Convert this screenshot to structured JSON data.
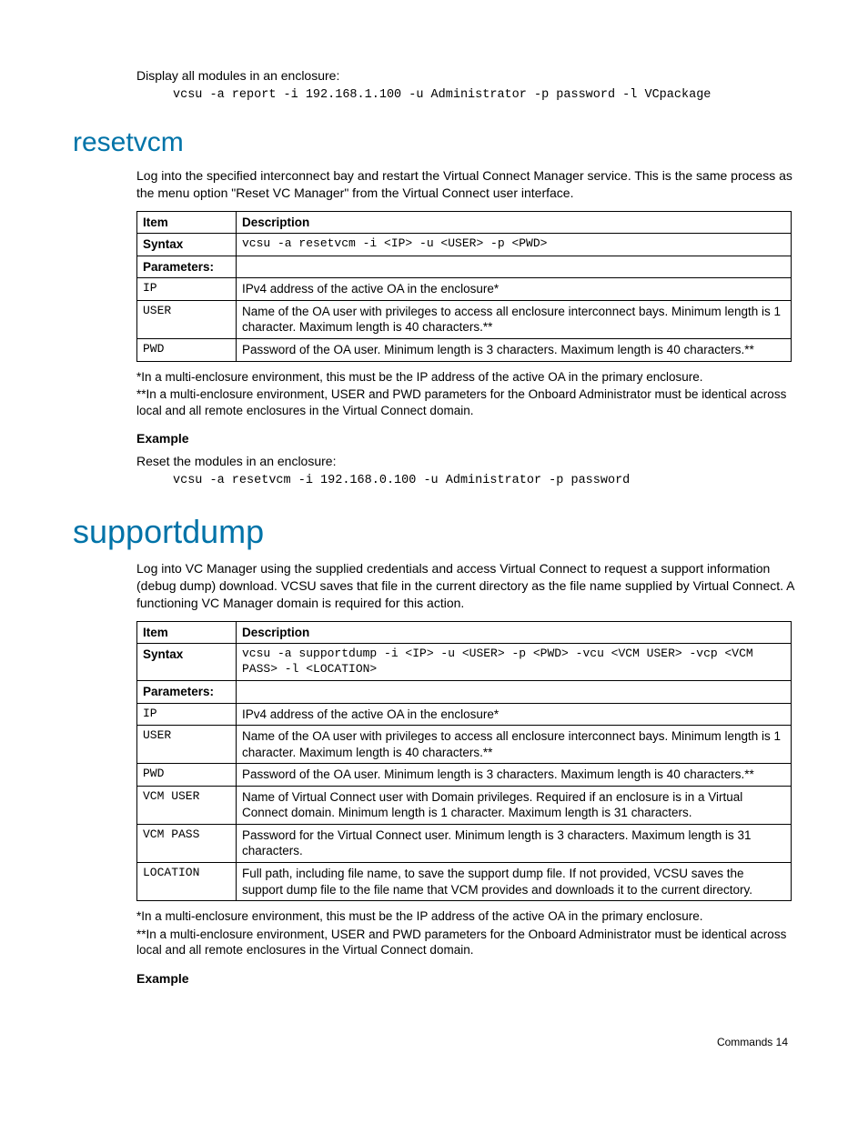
{
  "intro": {
    "text": "Display all modules in an enclosure:",
    "code": "vcsu -a report -i 192.168.1.100 -u Administrator -p password -l VCpackage"
  },
  "resetvcm": {
    "heading": "resetvcm",
    "desc": "Log into the specified interconnect bay and restart the Virtual Connect Manager service. This is the same process as the menu option \"Reset VC Manager\" from the Virtual Connect user interface.",
    "table": {
      "header_item": "Item",
      "header_desc": "Description",
      "syntax_label": "Syntax",
      "syntax_code": "vcsu -a resetvcm -i <IP> -u <USER> -p <PWD>",
      "params_label": "Parameters:",
      "rows": [
        {
          "item": "IP",
          "desc": "IPv4 address of the active OA in the enclosure*"
        },
        {
          "item": "USER",
          "desc": "Name of the OA user with privileges to access all enclosure interconnect bays. Minimum length is 1 character. Maximum length is 40 characters.**"
        },
        {
          "item": "PWD",
          "desc": "Password of the OA user. Minimum length is 3 characters. Maximum length is 40 characters.**"
        }
      ]
    },
    "note1": "*In a multi-enclosure environment, this must be the IP address of the active OA in the primary enclosure.",
    "note2": "**In a multi-enclosure environment, USER and PWD parameters for the Onboard Administrator must be identical across local and all remote enclosures in the Virtual Connect domain.",
    "example_label": "Example",
    "example_text": "Reset the modules in an enclosure:",
    "example_code": "vcsu -a resetvcm -i 192.168.0.100 -u Administrator -p password"
  },
  "supportdump": {
    "heading": "supportdump",
    "desc": "Log into VC Manager using the supplied credentials and access Virtual Connect to request a support information (debug dump) download. VCSU saves that file in the current directory as the file name supplied by Virtual Connect. A functioning VC Manager domain is required for this action.",
    "table": {
      "header_item": "Item",
      "header_desc": "Description",
      "syntax_label": "Syntax",
      "syntax_code": "vcsu -a supportdump -i <IP> -u <USER> -p <PWD> -vcu <VCM USER> -vcp <VCM PASS> -l <LOCATION>",
      "params_label": "Parameters:",
      "rows": [
        {
          "item": "IP",
          "desc": "IPv4 address of the active OA in the enclosure*"
        },
        {
          "item": "USER",
          "desc": "Name of the OA user with privileges to access all enclosure interconnect bays. Minimum length is 1 character. Maximum length is 40 characters.**"
        },
        {
          "item": "PWD",
          "desc": "Password of the OA user. Minimum length is 3 characters. Maximum length is 40 characters.**"
        },
        {
          "item": "VCM USER",
          "desc": "Name of Virtual Connect user with Domain privileges. Required if an enclosure is in a Virtual Connect domain. Minimum length is 1 character. Maximum length is 31 characters."
        },
        {
          "item": "VCM PASS",
          "desc": "Password for the Virtual Connect user. Minimum length is 3 characters. Maximum length is 31 characters."
        },
        {
          "item": "LOCATION",
          "desc": "Full path, including file name, to save the support dump file. If not provided, VCSU saves the support dump file to the file name that VCM provides and downloads it to the current directory."
        }
      ]
    },
    "note1": "*In a multi-enclosure environment, this must be the IP address of the active OA in the primary enclosure.",
    "note2": "**In a multi-enclosure environment, USER and PWD parameters for the Onboard Administrator must be identical across local and all remote enclosures in the Virtual Connect domain.",
    "example_label": "Example"
  },
  "footer": "Commands   14"
}
